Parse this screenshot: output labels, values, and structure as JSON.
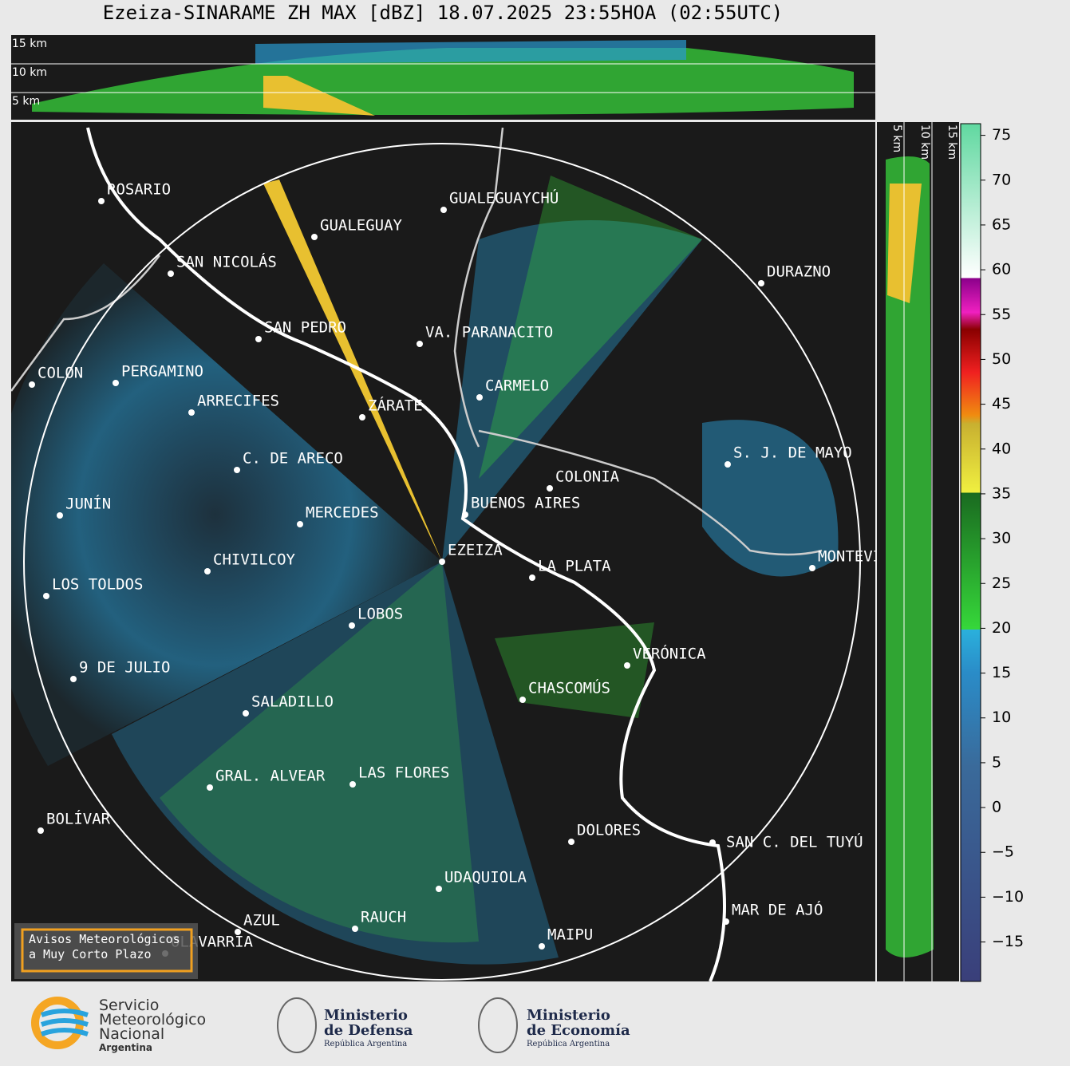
{
  "title": "Ezeiza-SINARAME ZH MAX [dBZ] 18.07.2025 23:55HOA (02:55UTC)",
  "height_labels": [
    "15 km",
    "10 km",
    "5 km"
  ],
  "side_labels": [
    "5 km",
    "10 km",
    "15 km"
  ],
  "cities": [
    "ROSARIO",
    "GUALEGUAYCHÚ",
    "GUALEGUAY",
    "SAN NICOLÁS",
    "DURAZNO",
    "SAN PEDRO",
    "VA. PARANACITO",
    "COLON",
    "PERGAMINO",
    "CARMELO",
    "ARRECIFES",
    "ZÁRATE",
    "S. J. DE MAYO",
    "C. DE ARECO",
    "COLONIA",
    "BUENOS AIRES",
    "JUNÍN",
    "MERCEDES",
    "EZEIZA",
    "CHIVILCOY",
    "MONTEVIDEO",
    "LA PLATA",
    "LOS TOLDOS",
    "LOBOS",
    "VERÓNICA",
    "9 DE JULIO",
    "CHASCOMÚS",
    "SALADILLO",
    "GRAL. ALVEAR",
    "LAS FLORES",
    "BOLÍVAR",
    "DOLORES",
    "SAN C. DEL TUYÚ",
    "UDAQUIOLA",
    "MAR DE AJÓ",
    "RAUCH",
    "AZUL",
    "OLAVARRÍA",
    "MAIPU"
  ],
  "colorbar": {
    "lim": [
      -19.4,
      76.3
    ],
    "ticks": [
      {
        "value": -15,
        "label": "−15"
      },
      {
        "value": -10,
        "label": "−10"
      },
      {
        "value": -5,
        "label": "−5"
      },
      0,
      5,
      10,
      15,
      20,
      25,
      30,
      35,
      40,
      45,
      50,
      55,
      60,
      65,
      70,
      75
    ]
  },
  "alert_box": [
    "Avisos Meteorológicos",
    "a Muy Corto Plazo"
  ],
  "logos": {
    "smn": [
      "Servicio",
      "Meteorológico",
      "Nacional",
      "Argentina"
    ],
    "defensa": [
      "Ministerio",
      "de Defensa",
      "República Argentina"
    ],
    "economia": [
      "Ministerio",
      "de Economía",
      "República Argentina"
    ]
  }
}
